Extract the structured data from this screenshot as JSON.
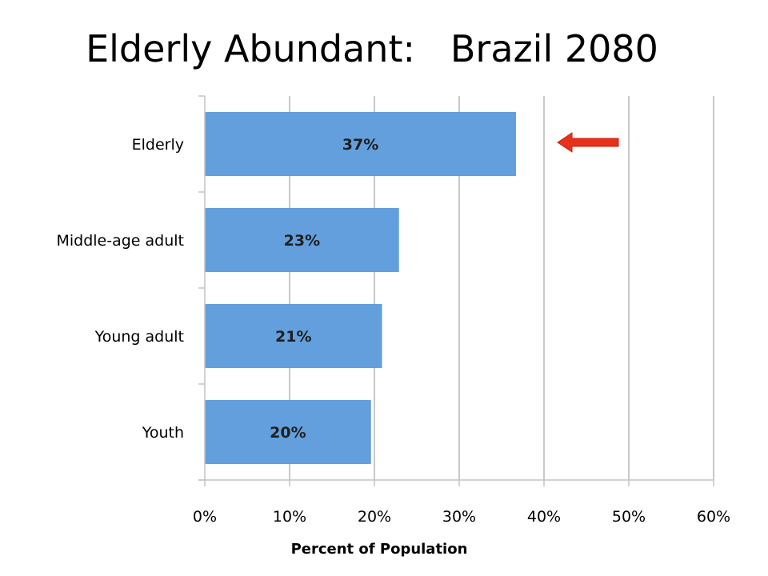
{
  "slide": {
    "title": "Elderly Abundant:   Brazil 2080"
  },
  "chart_data": {
    "type": "bar",
    "orientation": "horizontal",
    "categories": [
      "Elderly",
      "Middle-age adult",
      "Young adult",
      "Youth"
    ],
    "values": [
      36.7,
      22.9,
      20.9,
      19.6
    ],
    "data_labels": [
      "37%",
      "23%",
      "21%",
      "20%"
    ],
    "xlabel": "Percent of Population",
    "ylabel": "",
    "xlim": [
      0,
      60
    ],
    "x_ticks": [
      0,
      10,
      20,
      30,
      40,
      50,
      60
    ],
    "x_tick_labels": [
      "0%",
      "10%",
      "20%",
      "30%",
      "40%",
      "50%",
      "60%"
    ],
    "grid": "vertical",
    "legend": "none",
    "colors": {
      "bar": "#639fdc",
      "grid": "#b5b5b5",
      "axis": "#c4c4c4",
      "arrow": "#e8311b"
    },
    "annotations": [
      {
        "type": "arrow",
        "icon": "red-left-arrow",
        "points_to": "Elderly"
      }
    ]
  }
}
